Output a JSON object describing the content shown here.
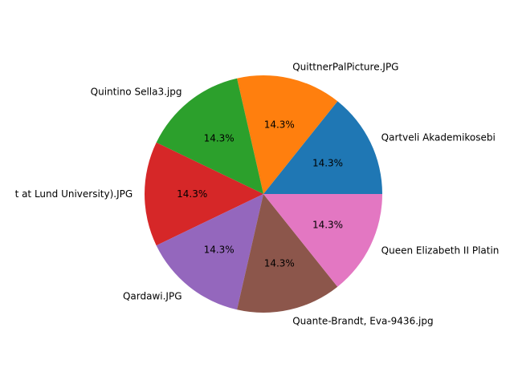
{
  "chart_data": {
    "type": "pie",
    "title": "",
    "start_angle_deg": 0,
    "direction": "counterclockwise",
    "slices": [
      {
        "label": "Qartveli Akademikosebi",
        "value": 14.3,
        "pct_label": "14.3%",
        "color": "#1f77b4"
      },
      {
        "label": "QuittnerPalPicture.JPG",
        "value": 14.3,
        "pct_label": "14.3%",
        "color": "#ff7f0e"
      },
      {
        "label": "Quintino Sella3.jpg",
        "value": 14.3,
        "pct_label": "14.3%",
        "color": "#2ca02c"
      },
      {
        "label": "t at Lund University).JPG",
        "value": 14.3,
        "pct_label": "14.3%",
        "color": "#d62728"
      },
      {
        "label": "Qardawi.JPG",
        "value": 14.3,
        "pct_label": "14.3%",
        "color": "#9467bd"
      },
      {
        "label": "Quante-Brandt, Eva-9436.jpg",
        "value": 14.3,
        "pct_label": "14.3%",
        "color": "#8c564b"
      },
      {
        "label": "Queen Elizabeth II Platin",
        "value": 14.3,
        "pct_label": "14.3%",
        "color": "#e377c2"
      }
    ]
  }
}
